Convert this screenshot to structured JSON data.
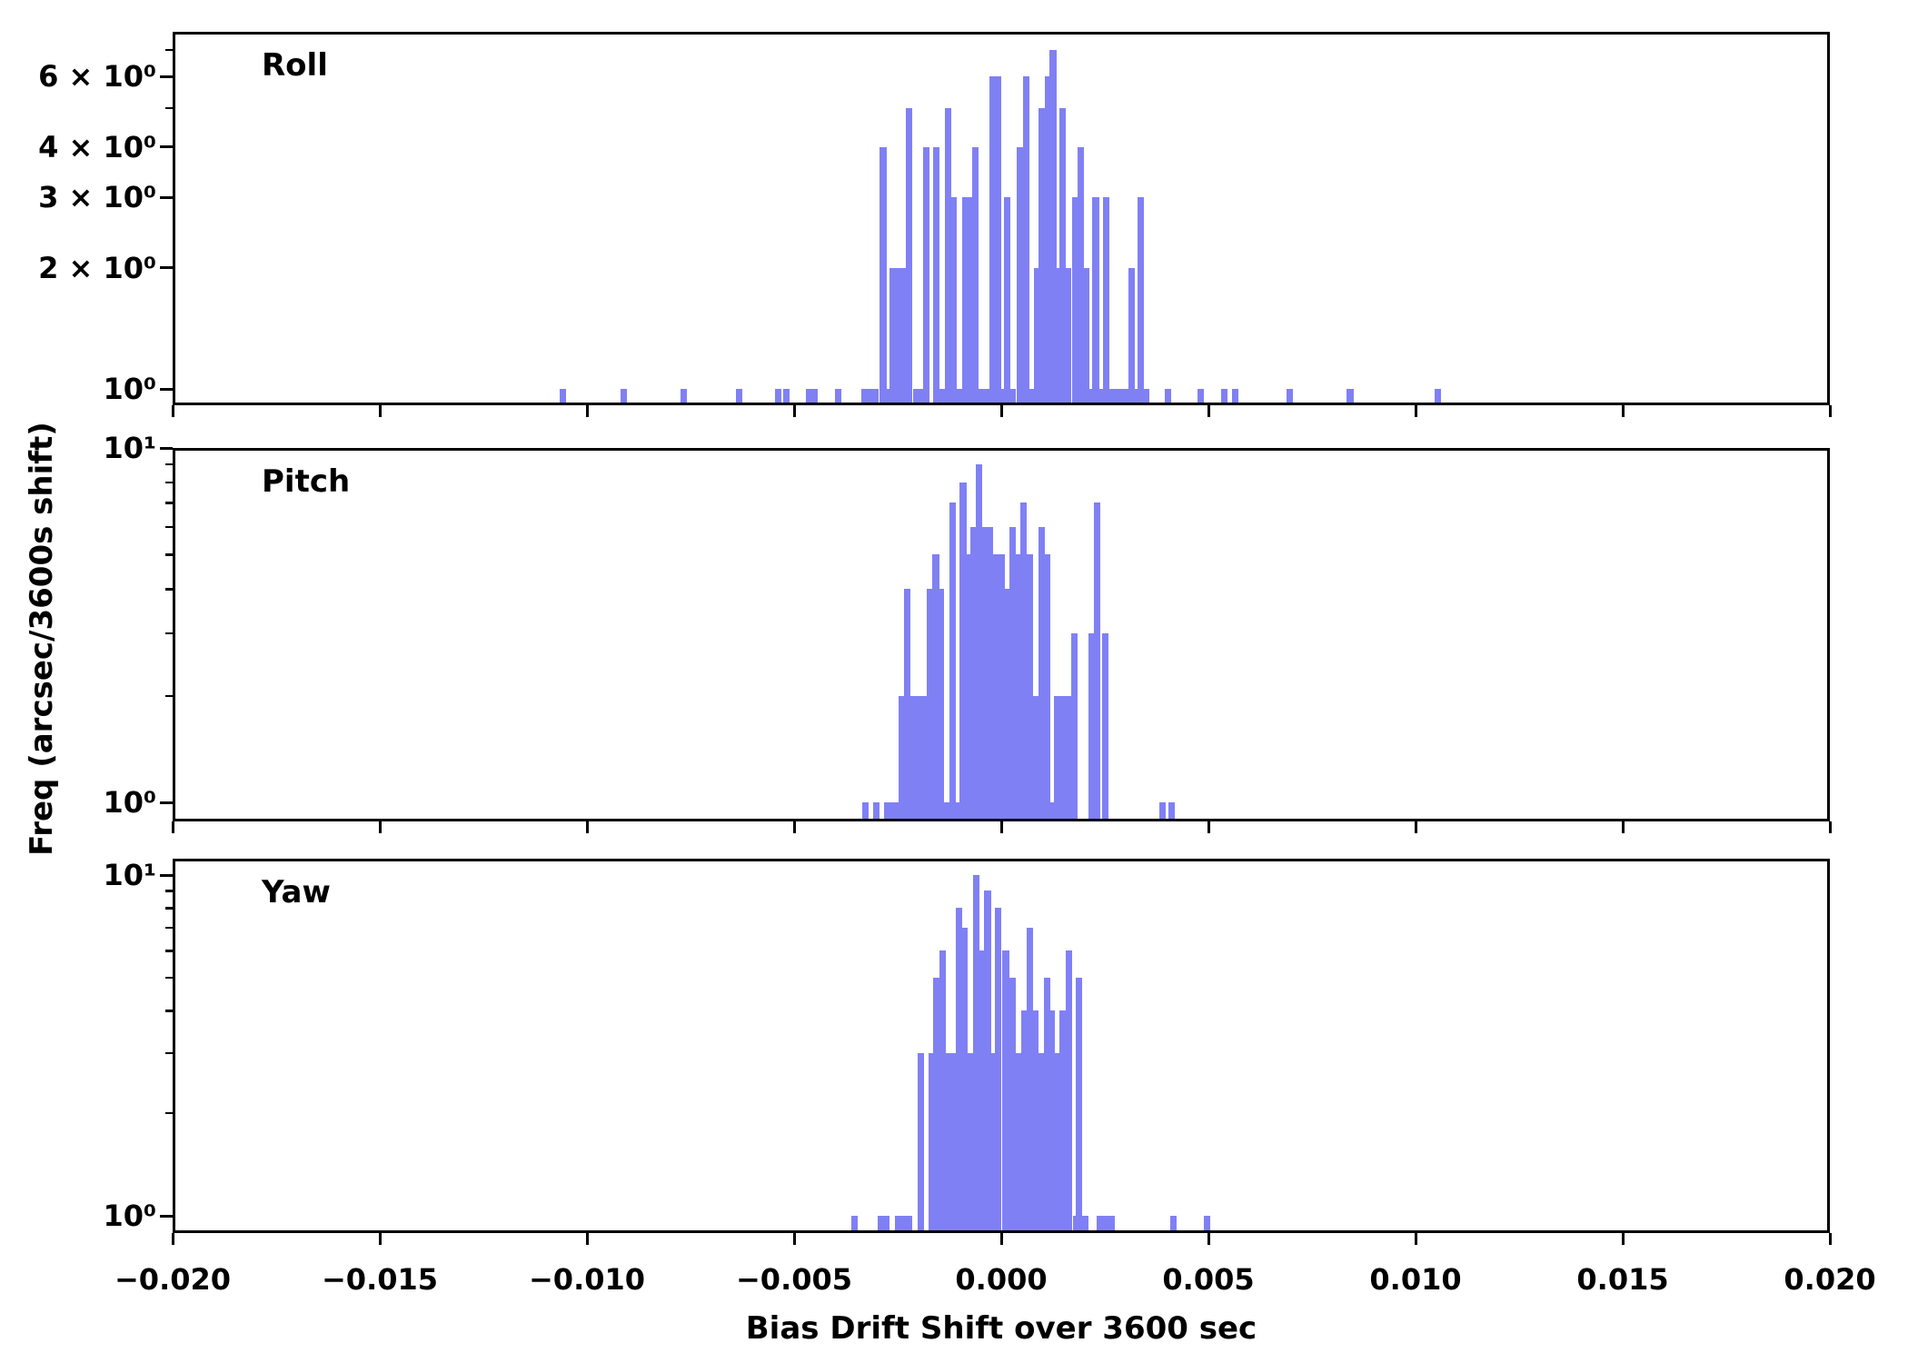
{
  "chart_data": {
    "type": "bar",
    "subtype": "histogram-log-y",
    "title": "",
    "xlabel": "Bias Drift Shift over 3600 sec",
    "ylabel": "Freq (arcsec/3600s shift)",
    "bar_color": "#8080f5",
    "axis_color": "#000000",
    "x_range": [
      -0.02,
      0.02
    ],
    "x_tick_values": [
      -0.02,
      -0.015,
      -0.01,
      -0.005,
      0.0,
      0.005,
      0.01,
      0.015,
      0.02
    ],
    "x_tick_labels": [
      "−0.020",
      "−0.015",
      "−0.010",
      "−0.005",
      "0.000",
      "0.005",
      "0.010",
      "0.015",
      "0.020"
    ],
    "bin_width": 0.000134,
    "yscale": "log",
    "legend": "none",
    "grid": "off",
    "panels": [
      {
        "label": "Roll",
        "ylim": [
          0.91,
          7.8
        ],
        "yticks_major": [
          {
            "v": 1,
            "label": "10⁰"
          },
          {
            "v": 2,
            "label": "2 × 10⁰"
          },
          {
            "v": 3,
            "label": "3 × 10⁰"
          },
          {
            "v": 4,
            "label": "4 × 10⁰"
          },
          {
            "v": 6,
            "label": "6 × 10⁰"
          }
        ],
        "yticks_minor": [
          5,
          7
        ],
        "bars": [
          [
            -0.01058,
            1
          ],
          [
            -0.00911,
            1
          ],
          [
            -0.00766,
            1
          ],
          [
            -0.00633,
            1
          ],
          [
            -0.00539,
            1
          ],
          [
            -0.00518,
            1
          ],
          [
            -0.00463,
            1
          ],
          [
            -0.0045,
            1
          ],
          [
            -0.00394,
            1
          ],
          [
            -0.00329,
            1
          ],
          [
            -0.00316,
            1
          ],
          [
            -0.00303,
            1
          ],
          [
            -0.00285,
            4
          ],
          [
            -0.00272,
            1
          ],
          [
            -0.00262,
            2
          ],
          [
            -0.00249,
            2
          ],
          [
            -0.00236,
            2
          ],
          [
            -0.00222,
            5
          ],
          [
            -0.00204,
            1
          ],
          [
            -0.00191,
            1
          ],
          [
            -0.00181,
            4
          ],
          [
            -0.00156,
            4
          ],
          [
            -0.00143,
            1
          ],
          [
            -0.00129,
            5
          ],
          [
            -0.00115,
            3
          ],
          [
            -0.00102,
            1
          ],
          [
            -0.00086,
            3
          ],
          [
            -0.00074,
            3
          ],
          [
            -0.00063,
            4
          ],
          [
            -0.00046,
            1
          ],
          [
            -0.00033,
            1
          ],
          [
            -0.0002,
            6
          ],
          [
            -7e-05,
            6
          ],
          [
            2e-05,
            1
          ],
          [
            0.00014,
            3
          ],
          [
            0.00027,
            1
          ],
          [
            0.00046,
            4
          ],
          [
            0.0006,
            6
          ],
          [
            0.00074,
            1
          ],
          [
            0.00086,
            2
          ],
          [
            0.00098,
            5
          ],
          [
            0.00112,
            6
          ],
          [
            0.00125,
            7
          ],
          [
            0.00137,
            2
          ],
          [
            0.00149,
            5
          ],
          [
            0.00162,
            2
          ],
          [
            0.00178,
            3
          ],
          [
            0.00191,
            4
          ],
          [
            0.00204,
            2
          ],
          [
            0.00215,
            1
          ],
          [
            0.00228,
            3
          ],
          [
            0.00241,
            1
          ],
          [
            0.00254,
            3
          ],
          [
            0.00267,
            1
          ],
          [
            0.00281,
            1
          ],
          [
            0.00294,
            1
          ],
          [
            0.00305,
            1
          ],
          [
            0.00314,
            2
          ],
          [
            0.00327,
            1
          ],
          [
            0.00336,
            3
          ],
          [
            0.00349,
            1
          ],
          [
            0.00403,
            1
          ],
          [
            0.00481,
            1
          ],
          [
            0.00538,
            1
          ],
          [
            0.00565,
            1
          ],
          [
            0.00696,
            1
          ],
          [
            0.00842,
            1
          ],
          [
            0.01054,
            1
          ]
        ]
      },
      {
        "label": "Pitch",
        "ylim": [
          0.89,
          10
        ],
        "yticks_major": [
          {
            "v": 1,
            "label": "10⁰"
          },
          {
            "v": 10,
            "label": "10¹"
          }
        ],
        "yticks_minor": [
          2,
          3,
          4,
          5,
          6,
          7,
          8,
          9
        ],
        "bars": [
          [
            -0.00328,
            1
          ],
          [
            -0.00301,
            1
          ],
          [
            -0.00276,
            1
          ],
          [
            -0.00263,
            1
          ],
          [
            -0.00249,
            1
          ],
          [
            -0.00239,
            2
          ],
          [
            -0.00226,
            4
          ],
          [
            -0.00213,
            2
          ],
          [
            -0.002,
            2
          ],
          [
            -0.00187,
            2
          ],
          [
            -0.00173,
            4
          ],
          [
            -0.00158,
            5
          ],
          [
            -0.00145,
            4
          ],
          [
            -0.0013,
            1
          ],
          [
            -0.00118,
            7
          ],
          [
            -0.00105,
            1
          ],
          [
            -0.00092,
            8
          ],
          [
            -0.00079,
            5
          ],
          [
            -0.00066,
            6
          ],
          [
            -0.00054,
            9
          ],
          [
            -0.0004,
            6
          ],
          [
            -0.00027,
            6
          ],
          [
            -0.00013,
            5
          ],
          [
            0.0,
            5
          ],
          [
            0.00013,
            4
          ],
          [
            0.00028,
            6
          ],
          [
            0.00041,
            5
          ],
          [
            0.00054,
            7
          ],
          [
            0.0007,
            5
          ],
          [
            0.00083,
            2
          ],
          [
            0.00097,
            6
          ],
          [
            0.0011,
            5
          ],
          [
            0.00122,
            1
          ],
          [
            0.00134,
            2
          ],
          [
            0.00147,
            2
          ],
          [
            0.0016,
            2
          ],
          [
            0.00177,
            3
          ],
          [
            0.00219,
            3
          ],
          [
            0.00232,
            7
          ],
          [
            0.00252,
            3
          ],
          [
            0.0039,
            1
          ],
          [
            0.00411,
            1
          ]
        ]
      },
      {
        "label": "Yaw",
        "ylim": [
          0.89,
          10.9
        ],
        "yticks_major": [
          {
            "v": 1,
            "label": "10⁰"
          },
          {
            "v": 10,
            "label": "10¹"
          }
        ],
        "yticks_minor": [
          2,
          3,
          4,
          5,
          6,
          7,
          8,
          9
        ],
        "bars": [
          [
            -0.00355,
            1
          ],
          [
            -0.0029,
            1
          ],
          [
            -0.00277,
            1
          ],
          [
            -0.00249,
            1
          ],
          [
            -0.00236,
            1
          ],
          [
            -0.00223,
            1
          ],
          [
            -0.00194,
            3
          ],
          [
            -0.00167,
            3
          ],
          [
            -0.00156,
            5
          ],
          [
            -0.00141,
            6
          ],
          [
            -0.00127,
            3
          ],
          [
            -0.00114,
            3
          ],
          [
            -0.00101,
            8
          ],
          [
            -0.00088,
            7
          ],
          [
            -0.00075,
            3
          ],
          [
            -0.00061,
            10
          ],
          [
            -0.00047,
            6
          ],
          [
            -0.00033,
            9
          ],
          [
            -0.00022,
            3
          ],
          [
            -7e-05,
            8
          ],
          [
            0.00011,
            6
          ],
          [
            0.00027,
            5
          ],
          [
            0.00042,
            3
          ],
          [
            0.00057,
            4
          ],
          [
            0.0007,
            7
          ],
          [
            0.00083,
            4
          ],
          [
            0.00098,
            3
          ],
          [
            0.00111,
            5
          ],
          [
            0.00122,
            4
          ],
          [
            0.00133,
            3
          ],
          [
            0.00149,
            4
          ],
          [
            0.00163,
            6
          ],
          [
            0.0018,
            1
          ],
          [
            0.00188,
            5
          ],
          [
            0.00202,
            1
          ],
          [
            0.00239,
            1
          ],
          [
            0.00252,
            1
          ],
          [
            0.00266,
            1
          ],
          [
            0.00415,
            1
          ],
          [
            0.00496,
            1
          ]
        ]
      }
    ]
  }
}
